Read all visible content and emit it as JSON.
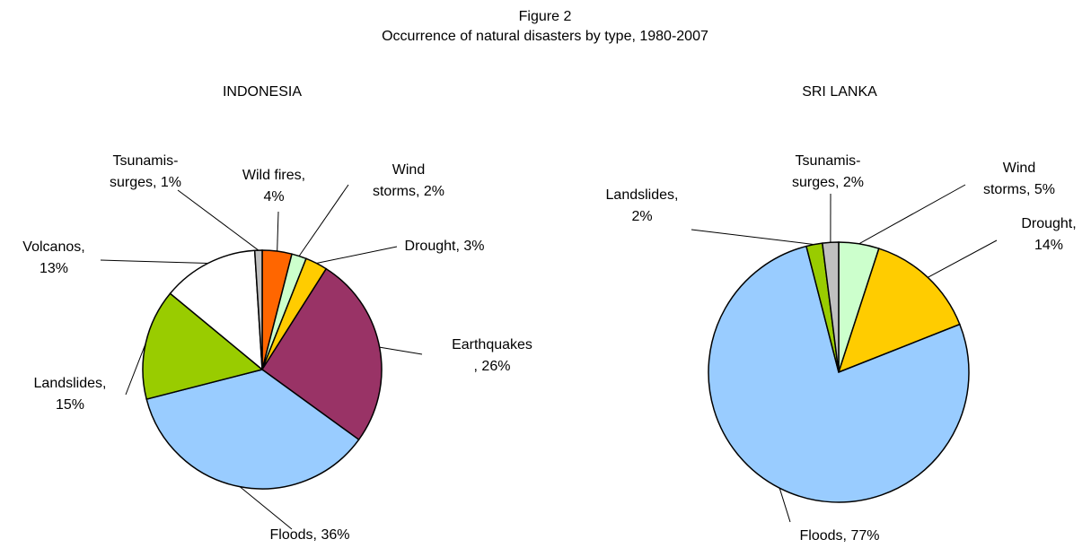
{
  "title": "Figure 2",
  "subtitle": "Occurrence of natural disasters by type, 1980-2007",
  "chart_data": [
    {
      "type": "pie",
      "title": "INDONESIA",
      "categories": [
        "Wild fires,\n4%",
        "Wind\nstorms, 2%",
        "Drought, 3%",
        "Earthquakes\n, 26%",
        "Floods, 36%",
        "Landslides,\n15%",
        "Volcanos,\n13%",
        "Tsunamis-\nsurges, 1%"
      ],
      "values": [
        4,
        2,
        3,
        26,
        36,
        15,
        13,
        1
      ],
      "colors": [
        "#ff6600",
        "#ccffcc",
        "#ffcc00",
        "#993366",
        "#99ccff",
        "#99cc00",
        "#ffffff",
        "#c0c0c0"
      ]
    },
    {
      "type": "pie",
      "title": "SRI LANKA",
      "categories": [
        "Wind\nstorms, 5%",
        "Drought,\n14%",
        "Floods, 77%",
        "Landslides,\n2%",
        "Tsunamis-\nsurges, 2%"
      ],
      "values": [
        5,
        14,
        77,
        2,
        2
      ],
      "colors": [
        "#ccffcc",
        "#ffcc00",
        "#99ccff",
        "#99cc00",
        "#c0c0c0"
      ]
    }
  ]
}
